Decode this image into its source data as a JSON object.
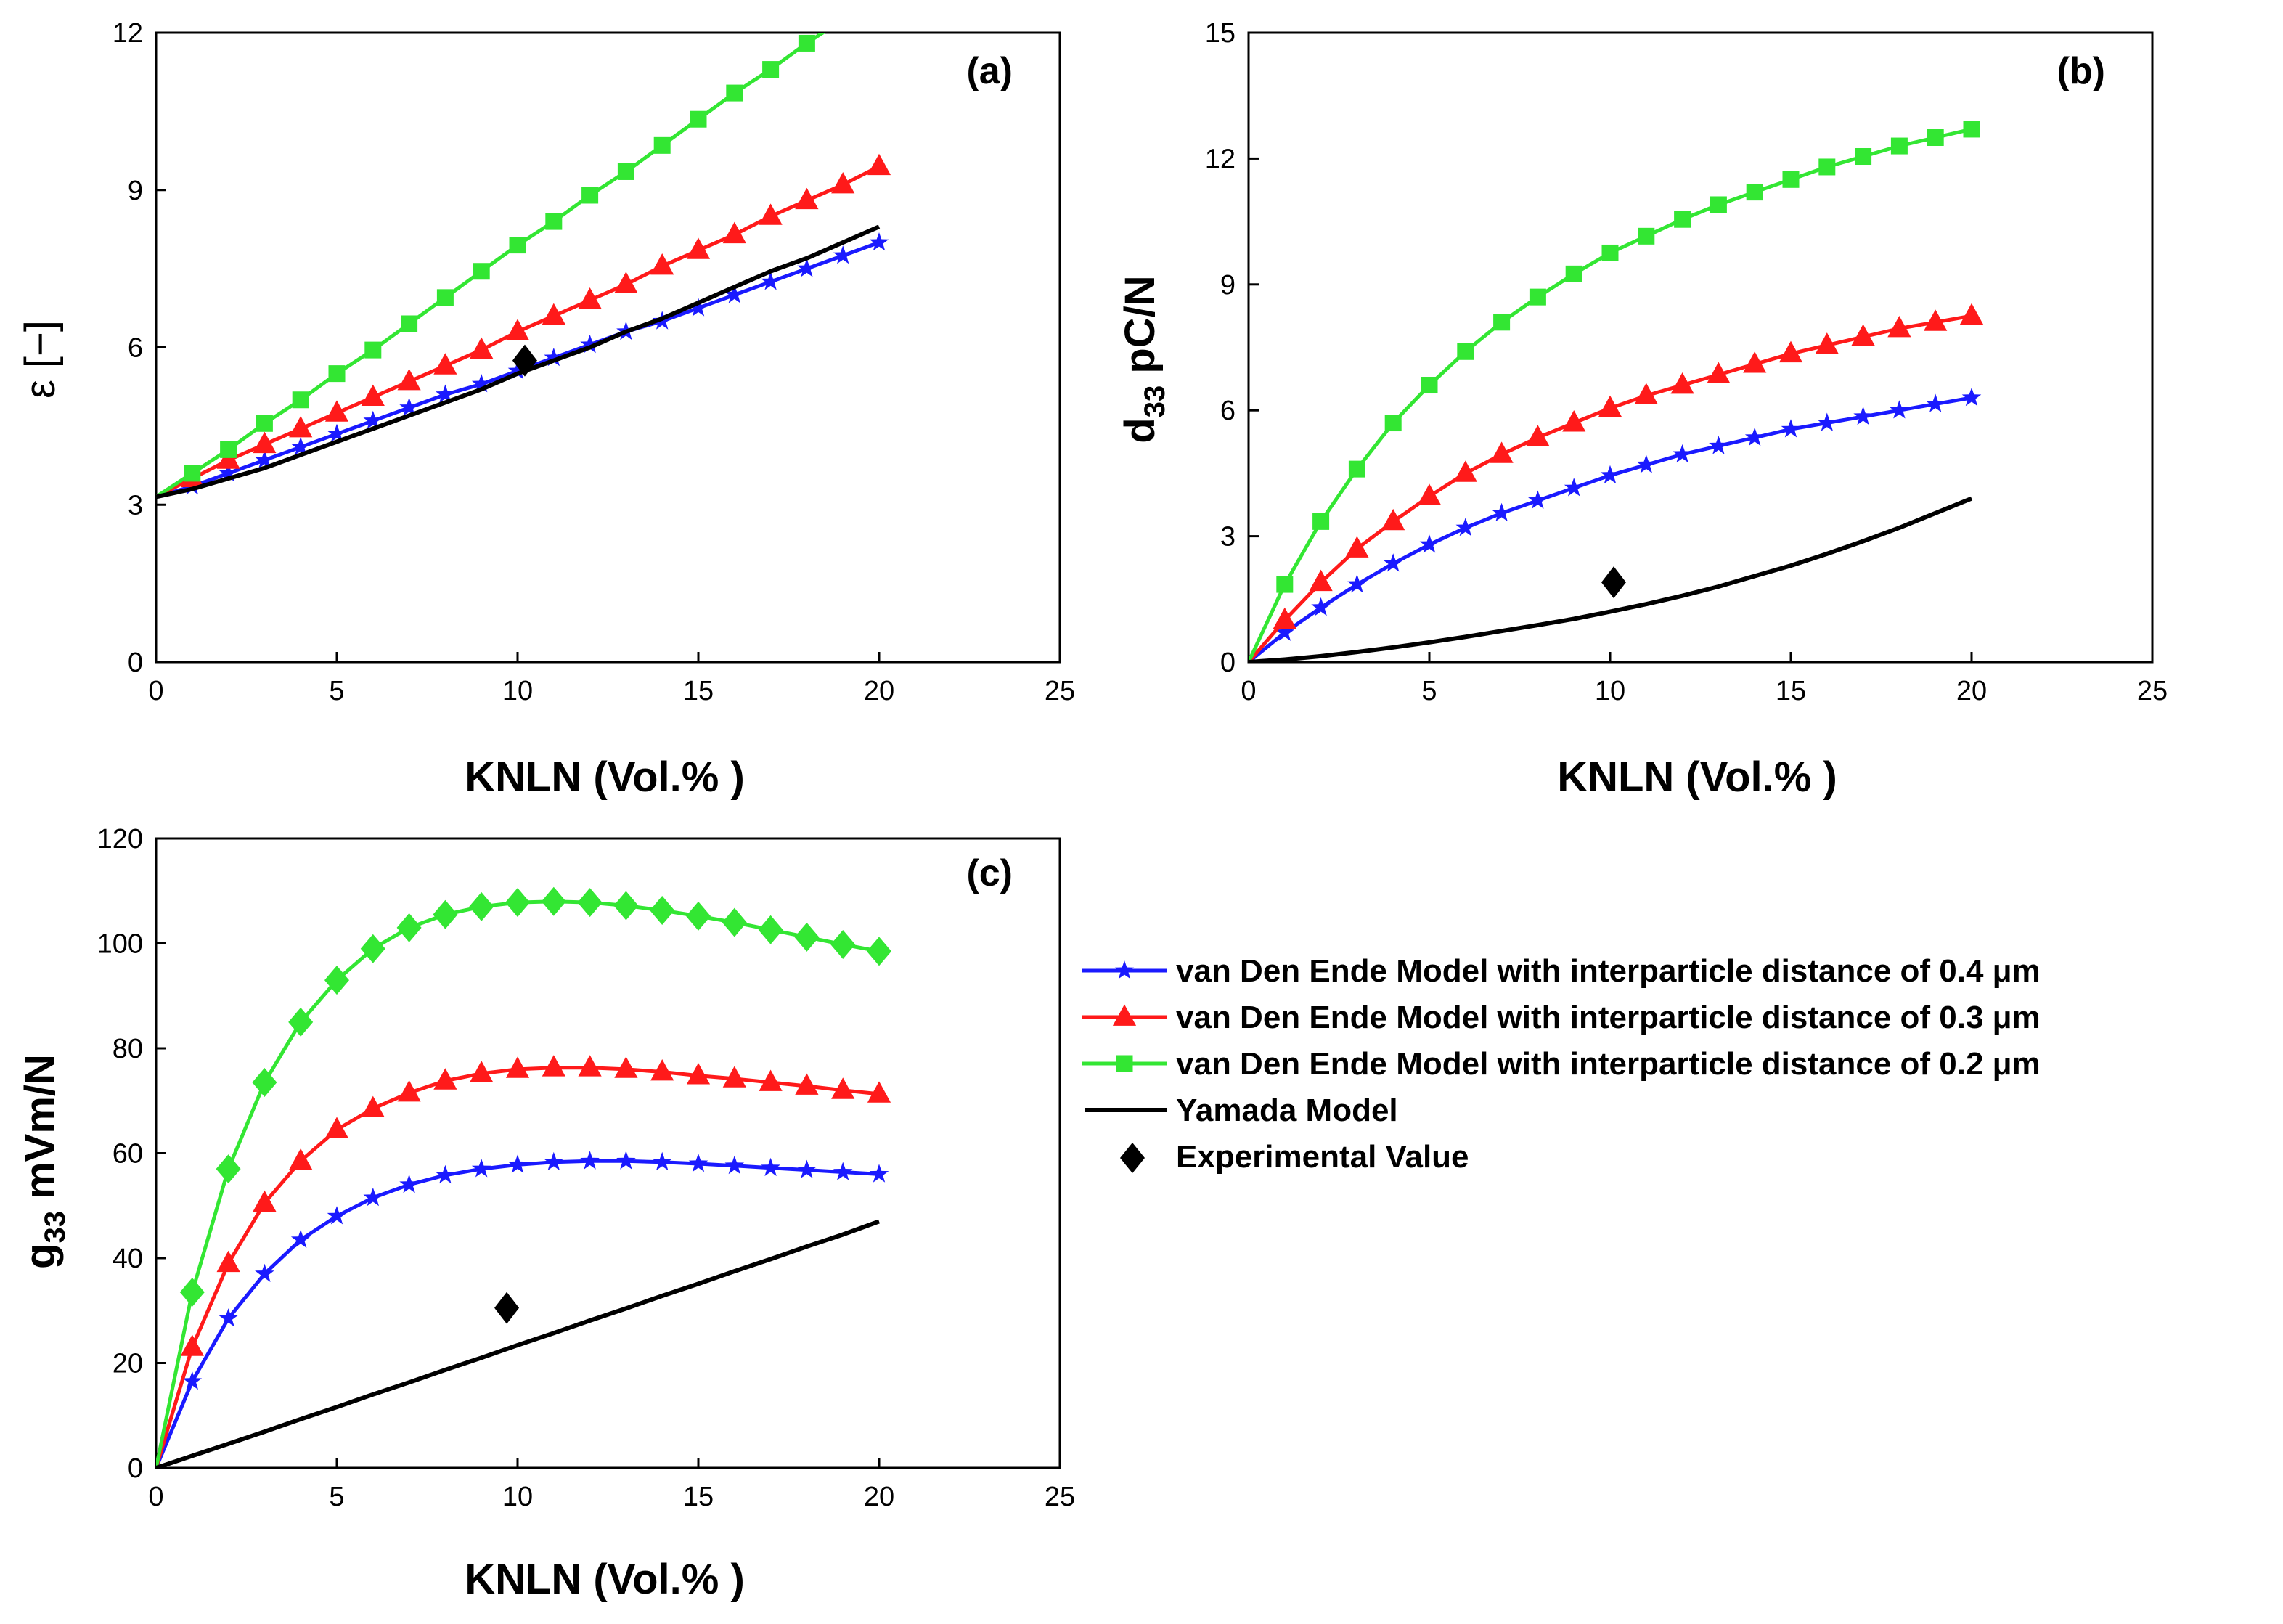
{
  "chart_data": [
    {
      "type": "line",
      "panel_label": "(a)",
      "xlabel": "KNLN (Vol.% )",
      "ylabel": "ε [−]",
      "xlim": [
        0,
        25
      ],
      "ylim": [
        0,
        12
      ],
      "xticks": [
        0,
        5,
        10,
        15,
        20,
        25
      ],
      "yticks": [
        0,
        3,
        6,
        9,
        12
      ],
      "grid": false,
      "x": [
        0,
        1,
        2,
        3,
        4,
        5,
        6,
        7,
        8,
        9,
        10,
        11,
        12,
        13,
        14,
        15,
        16,
        17,
        18,
        19,
        20
      ],
      "series": [
        {
          "key": "0.4",
          "values": [
            3.15,
            3.35,
            3.6,
            3.85,
            4.1,
            4.35,
            4.6,
            4.85,
            5.1,
            5.3,
            5.55,
            5.8,
            6.05,
            6.3,
            6.5,
            6.75,
            7.0,
            7.25,
            7.5,
            7.75,
            8.0
          ]
        },
        {
          "key": "0.3",
          "values": [
            3.15,
            3.5,
            3.85,
            4.15,
            4.45,
            4.75,
            5.05,
            5.35,
            5.65,
            5.95,
            6.3,
            6.6,
            6.9,
            7.2,
            7.55,
            7.85,
            8.15,
            8.5,
            8.8,
            9.1,
            9.45
          ]
        },
        {
          "key": "0.2",
          "values": [
            3.15,
            3.6,
            4.05,
            4.55,
            5.0,
            5.5,
            5.95,
            6.45,
            6.95,
            7.45,
            7.95,
            8.4,
            8.9,
            9.35,
            9.85,
            10.35,
            10.85,
            11.3,
            11.8,
            12.25,
            12.7
          ]
        },
        {
          "key": "yamada",
          "values": [
            3.15,
            3.3,
            3.5,
            3.7,
            3.95,
            4.2,
            4.45,
            4.7,
            4.95,
            5.2,
            5.5,
            5.75,
            6.0,
            6.3,
            6.55,
            6.85,
            7.15,
            7.45,
            7.7,
            8.0,
            8.3
          ]
        }
      ],
      "experimental": {
        "x": 10.2,
        "y": 5.75
      }
    },
    {
      "type": "line",
      "panel_label": "(b)",
      "xlabel": "KNLN (Vol.% )",
      "ylabel": "d33 pC/N",
      "ylabel_main": "d",
      "ylabel_sub": "33",
      "ylabel_rest": " pC/N",
      "xlim": [
        0,
        25
      ],
      "ylim": [
        0,
        15
      ],
      "xticks": [
        0,
        5,
        10,
        15,
        20,
        25
      ],
      "yticks": [
        0,
        3,
        6,
        9,
        12,
        15
      ],
      "grid": false,
      "x": [
        0,
        1,
        2,
        3,
        4,
        5,
        6,
        7,
        8,
        9,
        10,
        11,
        12,
        13,
        14,
        15,
        16,
        17,
        18,
        19,
        20
      ],
      "series": [
        {
          "key": "0.4",
          "values": [
            0,
            0.7,
            1.3,
            1.85,
            2.35,
            2.8,
            3.2,
            3.55,
            3.85,
            4.15,
            4.45,
            4.7,
            4.95,
            5.15,
            5.35,
            5.55,
            5.7,
            5.85,
            6.0,
            6.15,
            6.3
          ]
        },
        {
          "key": "0.3",
          "values": [
            0,
            1.0,
            1.9,
            2.7,
            3.35,
            3.95,
            4.5,
            4.95,
            5.35,
            5.7,
            6.05,
            6.35,
            6.6,
            6.85,
            7.1,
            7.35,
            7.55,
            7.75,
            7.95,
            8.1,
            8.25
          ]
        },
        {
          "key": "0.2",
          "values": [
            0,
            1.85,
            3.35,
            4.6,
            5.7,
            6.6,
            7.4,
            8.1,
            8.7,
            9.25,
            9.75,
            10.15,
            10.55,
            10.9,
            11.2,
            11.5,
            11.8,
            12.05,
            12.3,
            12.5,
            12.7
          ]
        },
        {
          "key": "yamada",
          "values": [
            0,
            0.06,
            0.14,
            0.24,
            0.35,
            0.47,
            0.6,
            0.74,
            0.88,
            1.03,
            1.2,
            1.38,
            1.58,
            1.8,
            2.05,
            2.3,
            2.58,
            2.88,
            3.2,
            3.55,
            3.9
          ]
        }
      ],
      "experimental": {
        "x": 10.1,
        "y": 1.9
      }
    },
    {
      "type": "line",
      "panel_label": "(c)",
      "xlabel": "KNLN (Vol.% )",
      "ylabel": "g33 mVm/N",
      "ylabel_main": "g",
      "ylabel_sub": "33",
      "ylabel_rest": " mVm/N",
      "xlim": [
        0,
        25
      ],
      "ylim": [
        0,
        120
      ],
      "xticks": [
        0,
        5,
        10,
        15,
        20,
        25
      ],
      "yticks": [
        0,
        20,
        40,
        60,
        80,
        100,
        120
      ],
      "grid": false,
      "x": [
        0,
        1,
        2,
        3,
        4,
        5,
        6,
        7,
        8,
        9,
        10,
        11,
        12,
        13,
        14,
        15,
        16,
        17,
        18,
        19,
        20
      ],
      "series": [
        {
          "key": "0.4",
          "values": [
            0,
            16.5,
            28.5,
            37,
            43.5,
            48,
            51.5,
            54,
            55.8,
            57,
            57.8,
            58.3,
            58.5,
            58.5,
            58.3,
            58,
            57.6,
            57.2,
            56.8,
            56.4,
            56
          ]
        },
        {
          "key": "0.3",
          "values": [
            0,
            23,
            39,
            50.5,
            58.5,
            64.5,
            68.5,
            71.5,
            73.8,
            75.2,
            76,
            76.3,
            76.3,
            76,
            75.5,
            74.8,
            74.2,
            73.5,
            72.8,
            72,
            71.3
          ]
        },
        {
          "key": "0.2",
          "values": [
            0,
            33.5,
            57,
            73.5,
            85,
            93,
            99,
            103,
            105.5,
            107,
            107.8,
            108,
            107.8,
            107.2,
            106.3,
            105.2,
            104,
            102.6,
            101.2,
            99.8,
            98.5
          ]
        },
        {
          "key": "yamada",
          "values": [
            0,
            2.3,
            4.6,
            6.9,
            9.3,
            11.6,
            14,
            16.3,
            18.7,
            21,
            23.4,
            25.7,
            28.1,
            30.4,
            32.8,
            35.1,
            37.5,
            39.8,
            42.2,
            44.5,
            47
          ]
        }
      ],
      "experimental": {
        "x": 9.7,
        "y": 30.5
      }
    }
  ],
  "legend": {
    "placement": "right of panel (c)",
    "items": [
      {
        "key": "0.4",
        "label": "van Den Ende Model with interparticle distance of 0.4 μm",
        "color": "#1a1aff",
        "marker": "star"
      },
      {
        "key": "0.3",
        "label": "van Den Ende Model with interparticle distance of 0.3 μm",
        "color": "#ff1a1a",
        "marker": "triangle"
      },
      {
        "key": "0.2",
        "label": "van Den Ende Model with interparticle distance of 0.2 μm",
        "color": "#33e633",
        "marker": "square"
      },
      {
        "key": "yamada",
        "label": "Yamada Model",
        "color": "#000000",
        "marker": "none"
      },
      {
        "key": "experimental",
        "label": "Experimental Value",
        "color": "#000000",
        "marker": "diamond"
      }
    ]
  },
  "style": {
    "panel_markers": {
      "a": "square",
      "b": "square",
      "c": "diamond"
    }
  }
}
